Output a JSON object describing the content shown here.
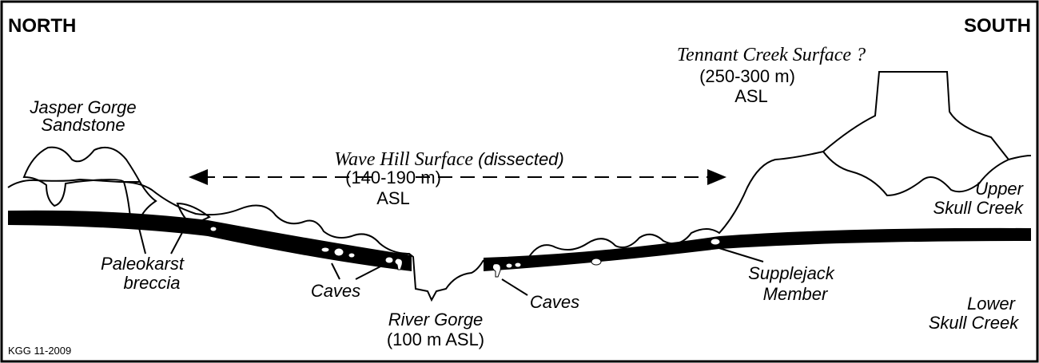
{
  "header": {
    "left": "NORTH",
    "right": "SOUTH"
  },
  "labels": {
    "jasper_gorge": [
      "Jasper Gorge",
      "Sandstone"
    ],
    "tennant_creek": {
      "name": "Tennant Creek Surface ?",
      "elevation": "(250-300 m)",
      "datum": "ASL"
    },
    "wave_hill": {
      "name": "Wave Hill Surface",
      "note": "(dissected)",
      "elevation": "(140-190 m)",
      "datum": "ASL"
    },
    "upper_skull_creek": [
      "Upper",
      "Skull Creek"
    ],
    "paleokarst": [
      "Paleokarst",
      "breccia"
    ],
    "caves_north": "Caves",
    "caves_south": "Caves",
    "river_gorge": {
      "name": "River Gorge",
      "elevation": "(100 m ASL)"
    },
    "supplejack": [
      "Supplejack",
      "Member"
    ],
    "lower_skull_creek": [
      "Lower",
      "Skull Creek"
    ]
  },
  "credit": "KGG 11-2009"
}
